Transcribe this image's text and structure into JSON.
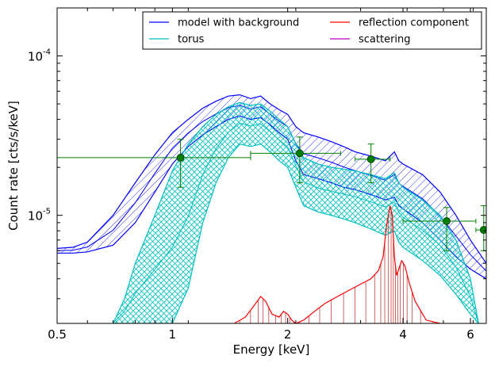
{
  "chart_data": {
    "type": "line",
    "xlabel": "Energy [keV]",
    "ylabel": "Count rate [cts/s/keV]",
    "xscale": "log",
    "yscale": "log",
    "xlim": [
      0.5,
      6.6
    ],
    "ylim": [
      2.1e-06,
      0.0002
    ],
    "x_ticks": [
      {
        "value": 0.5,
        "label": "0.5"
      },
      {
        "value": 1,
        "label": "1"
      },
      {
        "value": 2,
        "label": "2"
      },
      {
        "value": 4,
        "label": "4"
      },
      {
        "value": 6,
        "label": "6"
      }
    ],
    "y_ticks": [
      {
        "value": 1e-05,
        "base": "10",
        "exp": "-5"
      },
      {
        "value": 0.0001,
        "base": "10",
        "exp": "-4"
      }
    ],
    "grid": false,
    "legend": {
      "placement": "top-right",
      "entries": [
        {
          "label": "model with background",
          "color": "#0000ff"
        },
        {
          "label": "reflection component",
          "color": "#ff0000"
        },
        {
          "label": "torus",
          "color": "#00bfbf"
        },
        {
          "label": "scattering",
          "color": "#bf00bf"
        }
      ]
    },
    "series": [
      {
        "name": "model with background",
        "color": "#0000ff",
        "x": [
          0.5,
          0.55,
          0.6,
          0.7,
          0.8,
          0.9,
          1.0,
          1.1,
          1.2,
          1.3,
          1.4,
          1.5,
          1.6,
          1.7,
          1.8,
          1.9,
          2.0,
          2.1,
          2.2,
          2.4,
          2.6,
          2.8,
          3.0,
          3.3,
          3.6,
          3.8,
          3.9,
          4.0,
          4.5,
          5.0,
          5.5,
          6.0,
          6.6
        ],
        "upper": [
          6.2e-06,
          6.3e-06,
          6.8e-06,
          1e-05,
          1.6e-05,
          2.4e-05,
          3.3e-05,
          4e-05,
          4.7e-05,
          5.2e-05,
          5.6e-05,
          5.7e-05,
          5.4e-05,
          5.6e-05,
          5e-05,
          4.6e-05,
          4.3e-05,
          3.6e-05,
          3.3e-05,
          3.1e-05,
          2.9e-05,
          2.7e-05,
          2.5e-05,
          2.35e-05,
          2.2e-05,
          2.5e-05,
          2.2e-05,
          2.1e-05,
          1.8e-05,
          1.4e-05,
          1e-05,
          7e-06,
          5e-06
        ],
        "lower": [
          5.8e-06,
          5.8e-06,
          5.9e-06,
          6.5e-06,
          9e-06,
          1.4e-05,
          2.1e-05,
          2.7e-05,
          3.2e-05,
          3.6e-05,
          4e-05,
          4.2e-05,
          4e-05,
          4.1e-05,
          3.7e-05,
          3.3e-05,
          3e-05,
          2.2e-05,
          1.8e-05,
          1.7e-05,
          1.6e-05,
          1.5e-05,
          1.45e-05,
          1.35e-05,
          1.25e-05,
          1.3e-05,
          1.15e-05,
          1.1e-05,
          9e-06,
          7e-06,
          5.5e-06,
          4.6e-06,
          4e-06
        ]
      },
      {
        "name": "torus",
        "color": "#00bfbf",
        "x": [
          0.7,
          0.75,
          0.8,
          0.9,
          1.0,
          1.1,
          1.2,
          1.3,
          1.4,
          1.5,
          1.6,
          1.7,
          1.8,
          1.9,
          2.0,
          2.1,
          2.2,
          2.4,
          2.6,
          2.8,
          3.0,
          3.3,
          3.6,
          3.8,
          3.9,
          4.0,
          4.5,
          5.0,
          5.5,
          6.0,
          6.3
        ],
        "upper": [
          2.1e-06,
          3e-06,
          5e-06,
          1e-05,
          1.9e-05,
          2.8e-05,
          3.6e-05,
          4.3e-05,
          4.8e-05,
          5.1e-05,
          4.9e-05,
          5e-05,
          4.5e-05,
          4e-05,
          3.6e-05,
          2.8e-05,
          2.3e-05,
          2.1e-05,
          2e-05,
          1.95e-05,
          1.9e-05,
          1.8e-05,
          1.7e-05,
          1.85e-05,
          1.6e-05,
          1.5e-05,
          1.25e-05,
          1e-05,
          7e-06,
          4e-06,
          2.1e-06
        ],
        "lower": [
          2.1e-06,
          2.1e-06,
          2.1e-06,
          2.1e-06,
          2.1e-06,
          3.5e-06,
          9e-06,
          1.6e-05,
          2.3e-05,
          2.8e-05,
          2.7e-05,
          2.8e-05,
          2.5e-05,
          2.2e-05,
          2e-05,
          1.5e-05,
          1.15e-05,
          1.05e-05,
          1e-05,
          9.5e-06,
          9e-06,
          8.2e-06,
          7.5e-06,
          8e-06,
          6.8e-06,
          6.3e-06,
          5.2e-06,
          4.2e-06,
          3.2e-06,
          2.4e-06,
          2.1e-06
        ]
      },
      {
        "name": "reflection component",
        "color": "#ff0000",
        "x": [
          1.45,
          1.55,
          1.65,
          1.7,
          1.75,
          1.82,
          1.9,
          1.95,
          2.0,
          2.05,
          2.1,
          2.2,
          2.35,
          2.5,
          2.7,
          2.9,
          3.1,
          3.3,
          3.45,
          3.55,
          3.62,
          3.7,
          3.75,
          3.8,
          3.85,
          3.9,
          3.97,
          4.05,
          4.15,
          4.3,
          4.6,
          5.0
        ],
        "values": [
          2.1e-06,
          2.3e-06,
          2.8e-06,
          3.1e-06,
          2.9e-06,
          2.4e-06,
          2.3e-06,
          2.5e-06,
          2.4e-06,
          2.2e-06,
          2.1e-06,
          2.2e-06,
          2.5e-06,
          2.8e-06,
          3.1e-06,
          3.4e-06,
          3.7e-06,
          4e-06,
          4.5e-06,
          5.5e-06,
          8.5e-06,
          1.15e-05,
          1e-05,
          5.5e-06,
          4.2e-06,
          4.6e-06,
          5.2e-06,
          4.8e-06,
          3.8e-06,
          2.9e-06,
          2.2e-06,
          2.1e-06
        ]
      }
    ],
    "data_points": [
      {
        "x": 1.05,
        "y": 2.3e-05,
        "xlow": 0.5,
        "xhigh": 1.6,
        "ylow": 1.5e-05,
        "yhigh": 3e-05
      },
      {
        "x": 2.15,
        "y": 2.45e-05,
        "xlow": 1.6,
        "xhigh": 2.75,
        "ylow": 1.6e-05,
        "yhigh": 3.1e-05
      },
      {
        "x": 3.3,
        "y": 2.25e-05,
        "xlow": 3.0,
        "xhigh": 3.7,
        "ylow": 1.6e-05,
        "yhigh": 2.8e-05
      },
      {
        "x": 5.2,
        "y": 9.2e-06,
        "xlow": 4.0,
        "xhigh": 6.2,
        "ylow": 6e-06,
        "yhigh": 1.12e-05
      },
      {
        "x": 6.5,
        "y": 8.1e-06,
        "xlow": 6.2,
        "xhigh": 6.6,
        "ylow": 6e-06,
        "yhigh": 1.15e-05
      }
    ],
    "data_color": "#008000"
  }
}
